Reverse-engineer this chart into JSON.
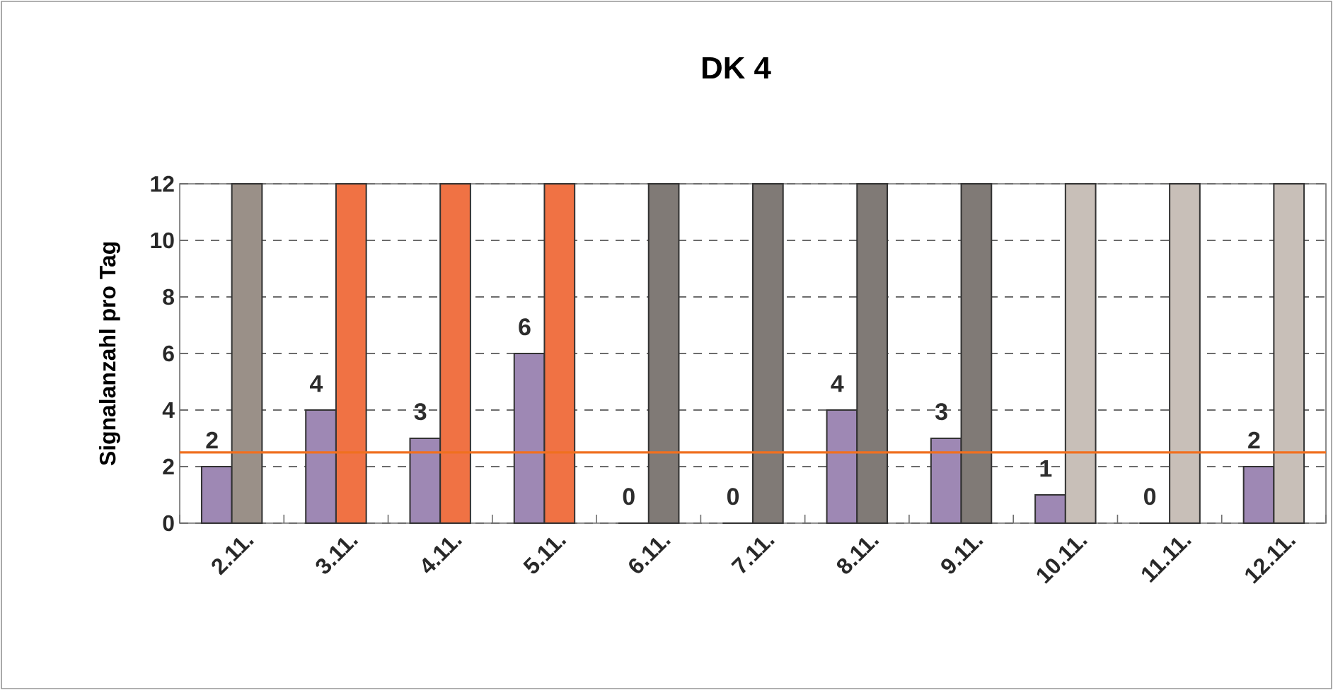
{
  "chart_data": {
    "type": "bar",
    "title": "DK 4",
    "ylabel": "Signalanzahl pro Tag",
    "categories": [
      "2.11.",
      "3.11.",
      "4.11.",
      "5.11.",
      "6.11.",
      "7.11.",
      "8.11.",
      "9.11.",
      "10.11.",
      "11.11.",
      "12.11."
    ],
    "series": [
      {
        "type": "bar",
        "color": "#9e88b4",
        "values": [
          2,
          4,
          3,
          6,
          0,
          0,
          4,
          3,
          1,
          0,
          2
        ],
        "value_labels": [
          "2",
          "4",
          "3",
          "6",
          "0",
          "0",
          "4",
          "3",
          "1",
          "0",
          "2"
        ]
      },
      {
        "type": "bar",
        "colors": [
          "#9a9088",
          "#f07244",
          "#f07244",
          "#f07244",
          "#807a76",
          "#807a76",
          "#807a76",
          "#807a76",
          "#c8bfb8",
          "#c8bfb8",
          "#c8bfb8"
        ],
        "values": [
          12,
          12,
          12,
          12,
          12,
          12,
          12,
          12,
          12,
          12,
          12
        ]
      }
    ],
    "ylim": [
      0,
      12
    ],
    "yticks": [
      0,
      2,
      4,
      6,
      8,
      10,
      12
    ],
    "grid": "y",
    "ref_lines": [
      {
        "axis": "y",
        "value": 2.5,
        "color": "#f07020"
      }
    ]
  }
}
